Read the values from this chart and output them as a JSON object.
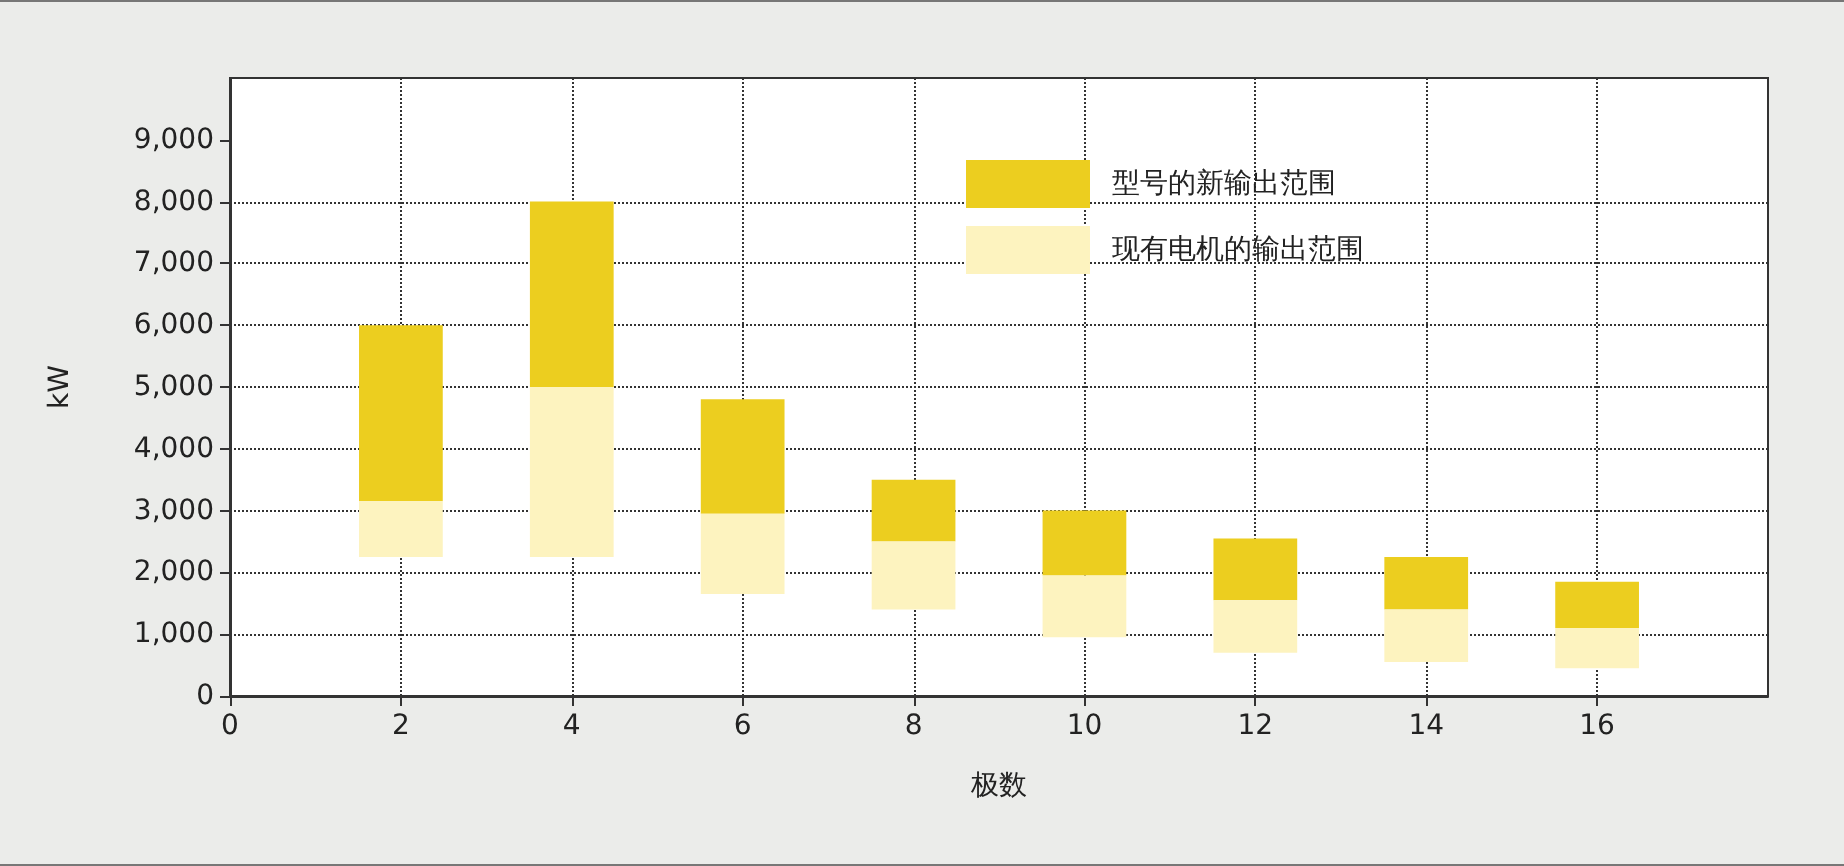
{
  "chart_data": {
    "type": "bar",
    "xlabel": "极数",
    "ylabel": "kW",
    "x": [
      2,
      4,
      6,
      8,
      10,
      12,
      14,
      16
    ],
    "series": [
      {
        "name": "型号的新输出范围",
        "color": "#ecce1f",
        "base": [
          3150,
          5000,
          2950,
          2500,
          1950,
          1550,
          1400,
          1100
        ],
        "values": [
          2850,
          3000,
          1850,
          1000,
          1050,
          1000,
          850,
          750
        ]
      },
      {
        "name": "现有电机的输出范围",
        "color": "#fdf3bf",
        "base": [
          2250,
          2250,
          1650,
          1400,
          950,
          700,
          550,
          450
        ],
        "values": [
          900,
          2750,
          1300,
          1100,
          1000,
          850,
          850,
          650
        ]
      }
    ],
    "xlim": [
      0,
      18
    ],
    "xticks": [
      0,
      2,
      4,
      6,
      8,
      10,
      12,
      14,
      16
    ],
    "ylim": [
      0,
      10000
    ],
    "yticks": [
      {
        "value": 0,
        "label": "0"
      },
      {
        "value": 1000,
        "label": "1,000"
      },
      {
        "value": 2000,
        "label": "2,000"
      },
      {
        "value": 3000,
        "label": "3,000"
      },
      {
        "value": 4000,
        "label": "4,000"
      },
      {
        "value": 5000,
        "label": "5,000"
      },
      {
        "value": 6000,
        "label": "6,000"
      },
      {
        "value": 7000,
        "label": "7,000"
      },
      {
        "value": 8000,
        "label": "8,000"
      },
      {
        "value": 9000,
        "label": "9,000"
      }
    ],
    "grid": true,
    "legend": "top right"
  }
}
